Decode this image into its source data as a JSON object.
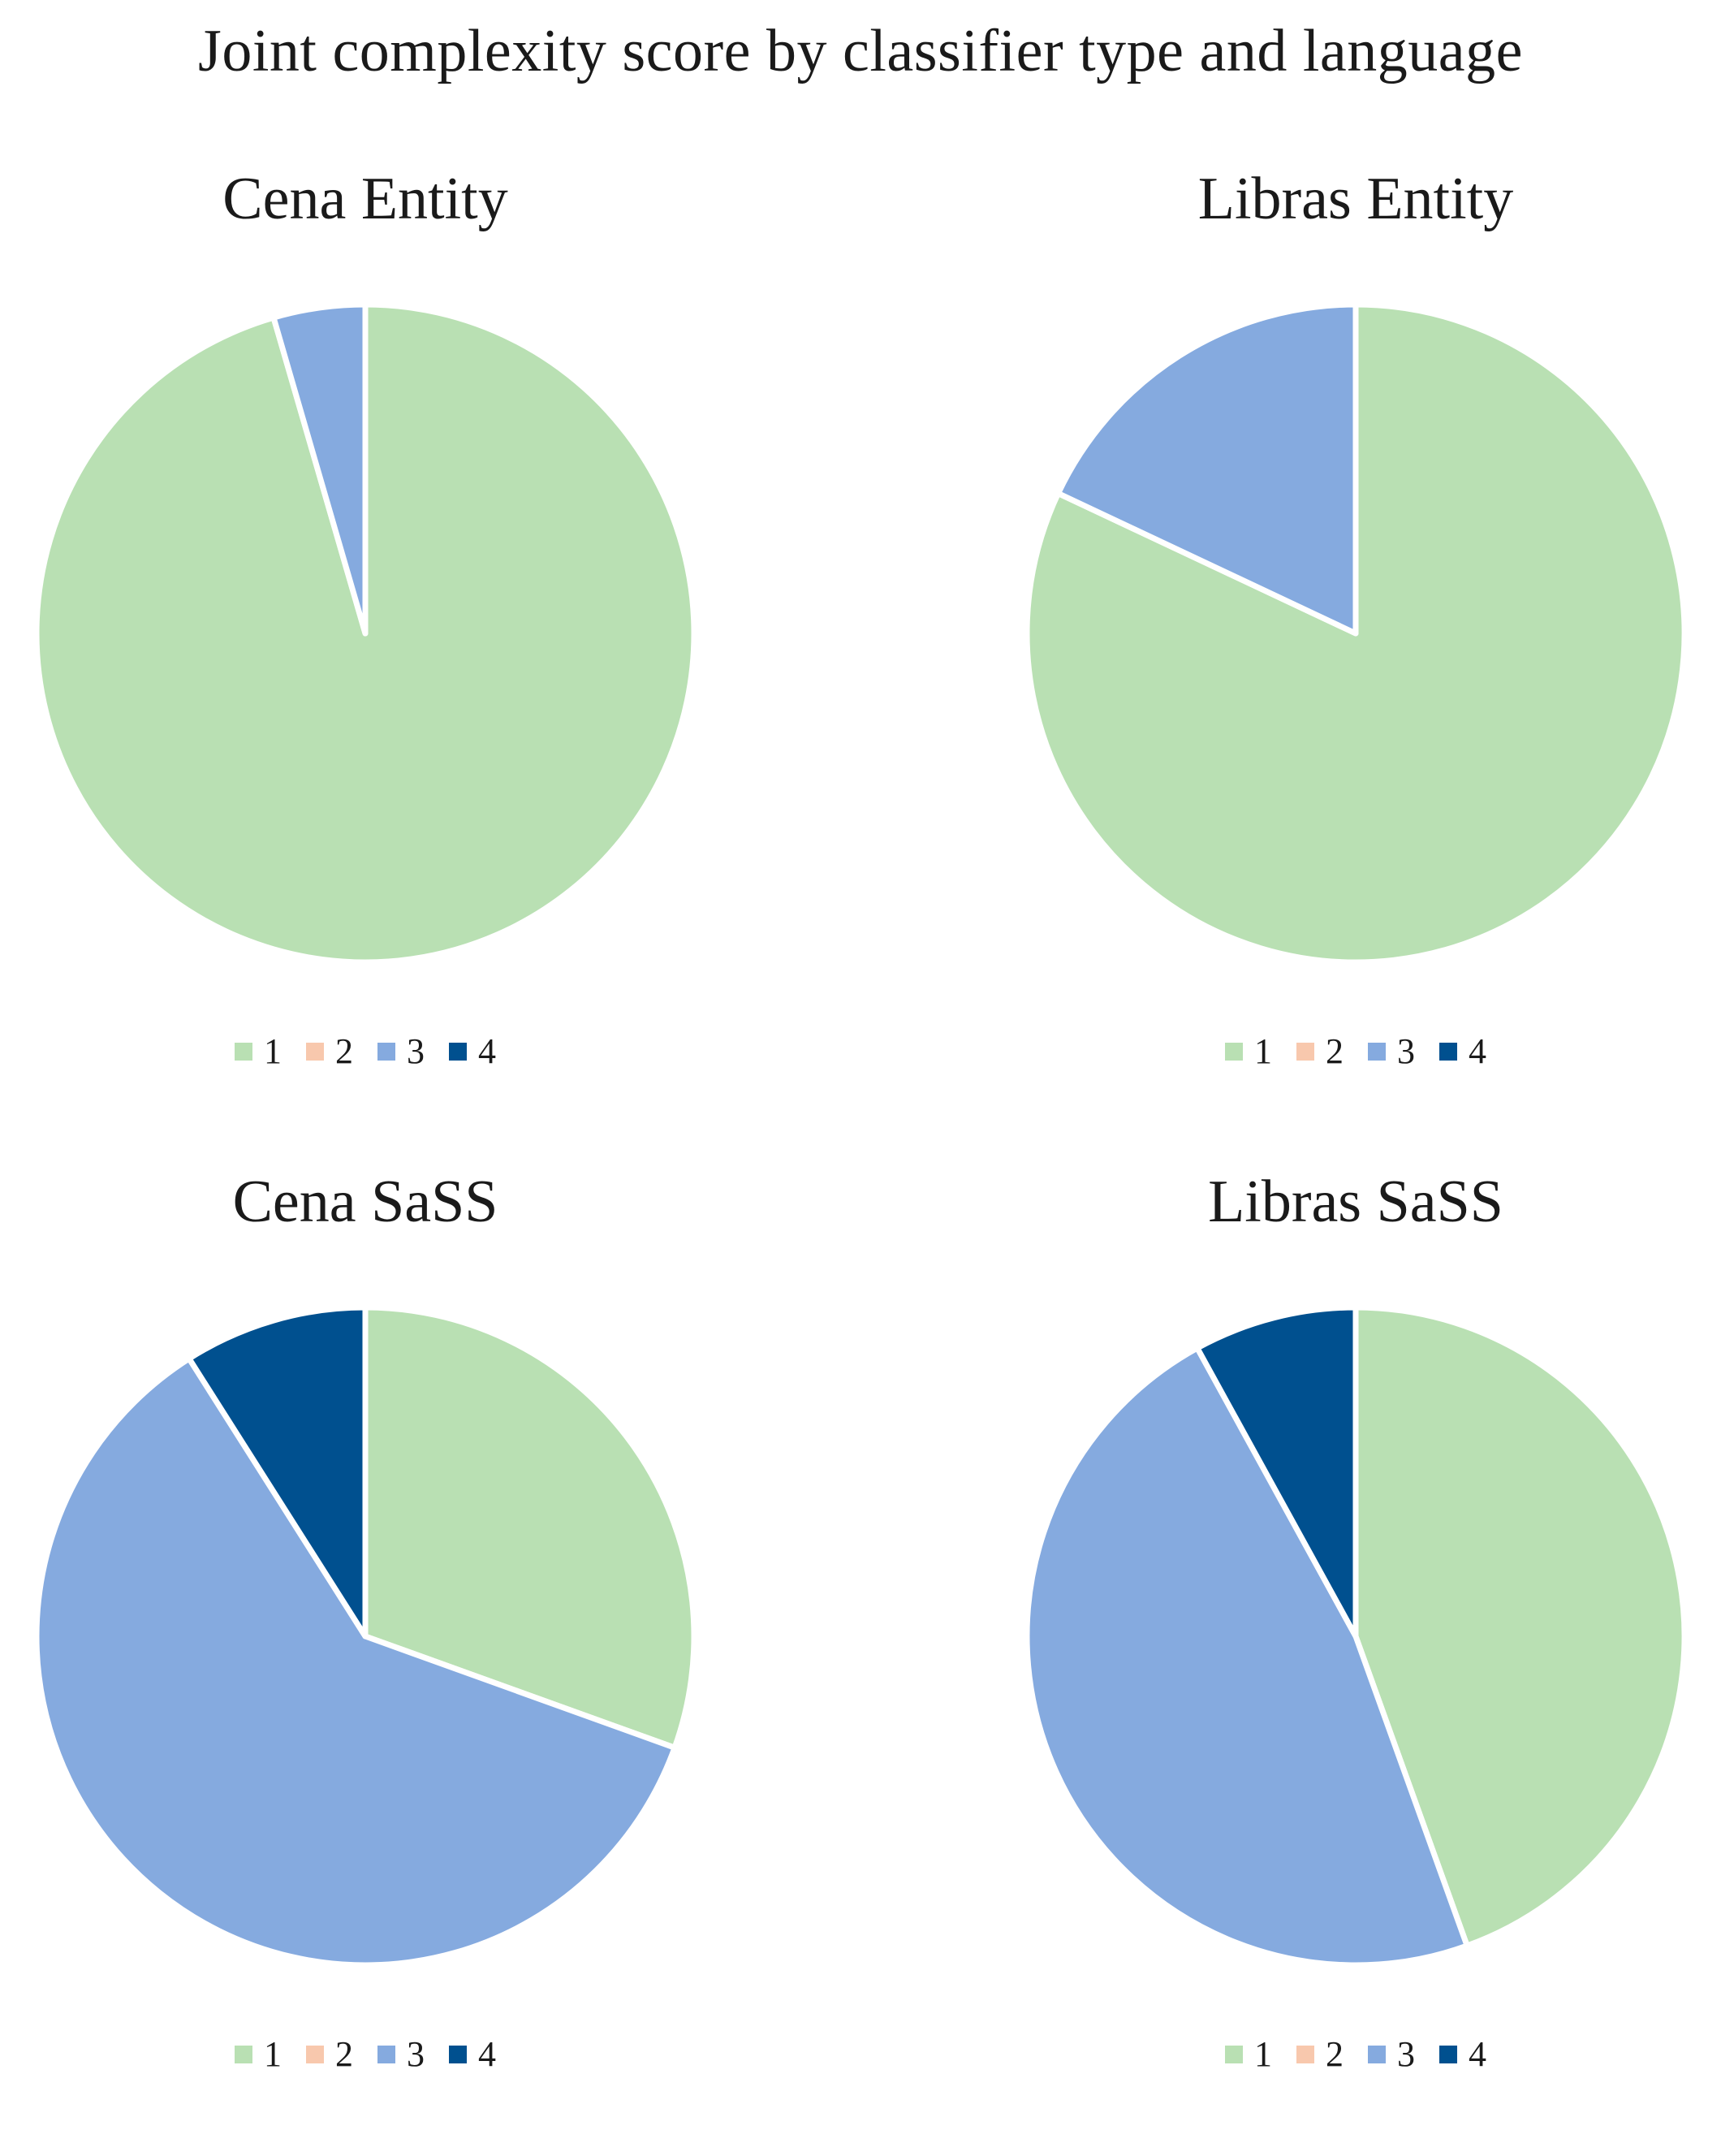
{
  "title": "Joint complexity score by classifier type and language",
  "colors": {
    "1": "#b9e0b3",
    "2": "#f8c8ad",
    "3": "#85aadf",
    "4": "#00508f"
  },
  "chart_data": [
    {
      "type": "pie",
      "title": "Cena Entity",
      "categories": [
        "1",
        "2",
        "3",
        "4"
      ],
      "values": [
        95.5,
        0,
        4.5,
        0
      ]
    },
    {
      "type": "pie",
      "title": "Libras Entity",
      "categories": [
        "1",
        "2",
        "3",
        "4"
      ],
      "values": [
        82,
        0,
        18,
        0
      ]
    },
    {
      "type": "pie",
      "title": "Cena SaSS",
      "categories": [
        "1",
        "2",
        "3",
        "4"
      ],
      "values": [
        30.5,
        0,
        60.5,
        9
      ]
    },
    {
      "type": "pie",
      "title": "Libras SaSS",
      "categories": [
        "1",
        "2",
        "3",
        "4"
      ],
      "values": [
        44.5,
        0,
        47.5,
        8
      ]
    }
  ]
}
